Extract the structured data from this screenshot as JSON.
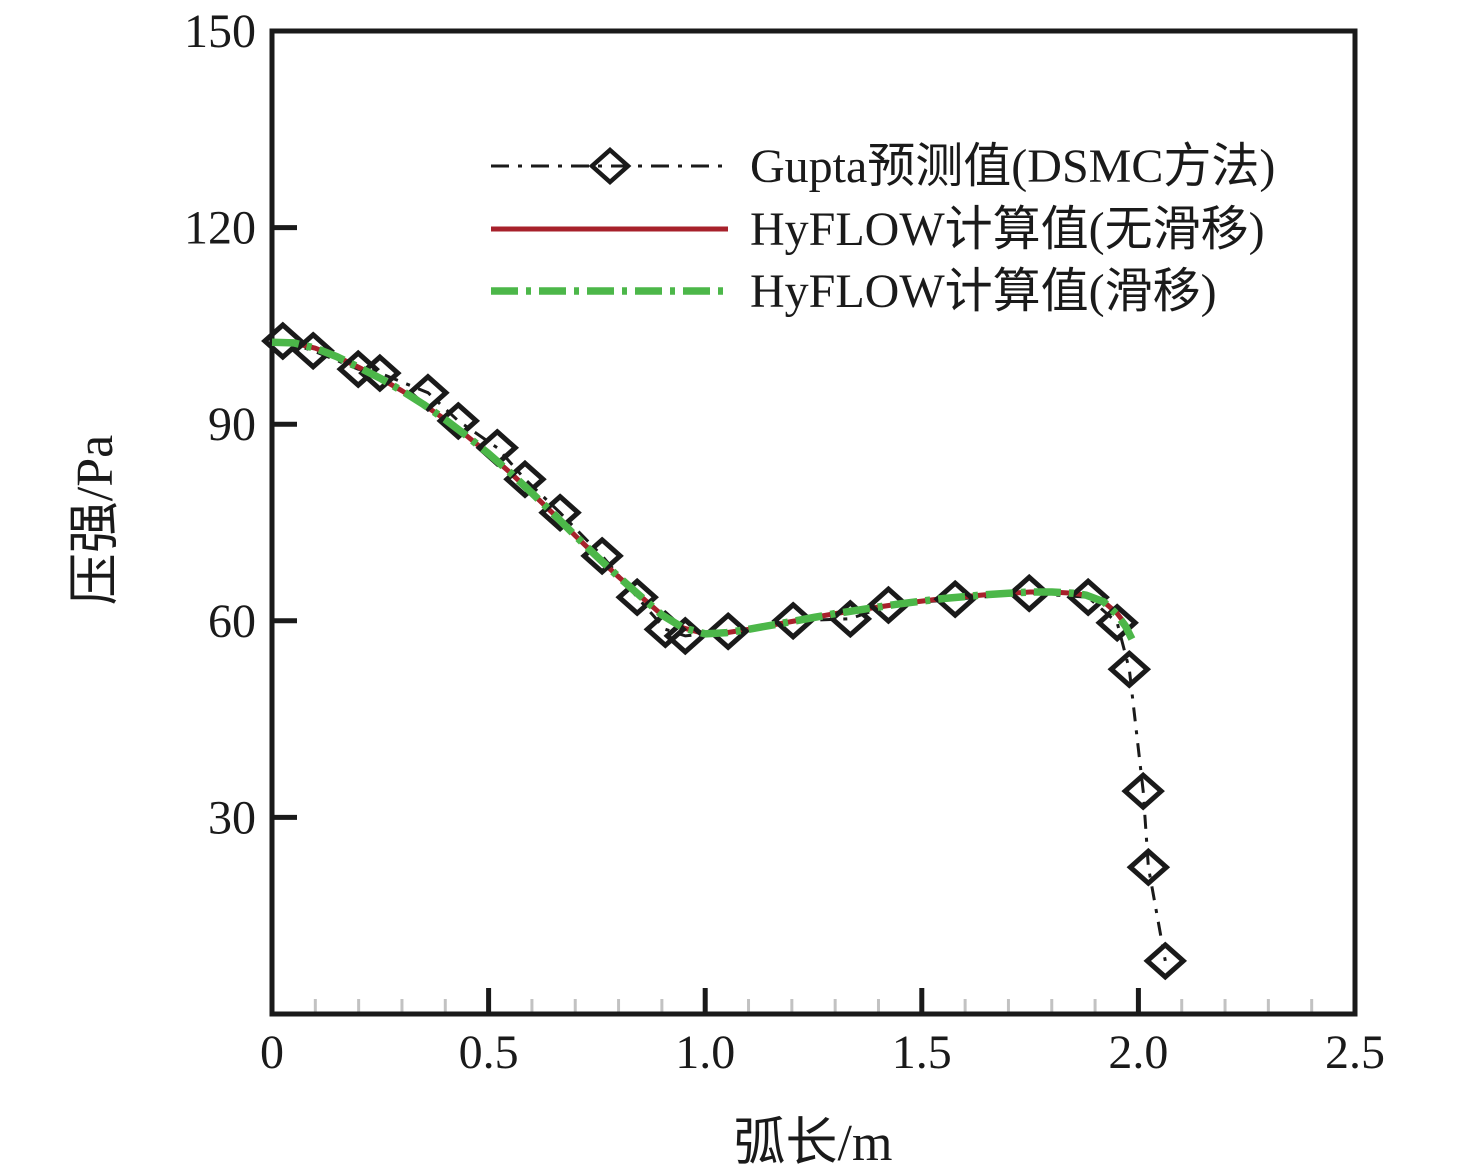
{
  "figure": {
    "background": "#ffffff",
    "axis_color": "#1a1a1a",
    "minor_tick_color": "#c2c2c2"
  },
  "chart_data": {
    "type": "line",
    "title": "",
    "xlabel": "弧长/m",
    "ylabel": "压强/Pa",
    "xlim": [
      0,
      2.5
    ],
    "ylim": [
      0,
      150
    ],
    "grid": false,
    "legend_position": "upper center, inside plot",
    "x_ticks": {
      "labels": [
        "0",
        "0.5",
        "1.0",
        "1.5",
        "2.0",
        "2.5"
      ],
      "values": [
        0,
        0.5,
        1.0,
        1.5,
        2.0,
        2.5
      ],
      "minor_step": 0.1
    },
    "y_ticks": {
      "labels": [
        "30",
        "60",
        "90",
        "120",
        "150"
      ],
      "values": [
        30,
        60,
        90,
        120,
        150
      ]
    },
    "series": [
      {
        "id": "gupta_dsmc",
        "name": "Gupta预测值(DSMC方法)",
        "color": "#1a1a1a",
        "line_style": "dash-dot",
        "marker": "open-diamond",
        "x": [
          0.025,
          0.095,
          0.199,
          0.249,
          0.36,
          0.43,
          0.52,
          0.584,
          0.665,
          0.762,
          0.843,
          0.908,
          0.954,
          1.053,
          1.203,
          1.335,
          1.423,
          1.577,
          1.748,
          1.884,
          1.951,
          1.979,
          2.011,
          2.023,
          2.062
        ],
        "y": [
          102.7,
          101.2,
          98.4,
          97.8,
          94.8,
          90.5,
          86.4,
          81.6,
          76.5,
          69.9,
          63.6,
          58.7,
          57.7,
          58.4,
          60.0,
          60.3,
          62.4,
          63.3,
          64.2,
          63.6,
          59.7,
          52.6,
          34.0,
          22.4,
          8.1
        ]
      },
      {
        "id": "hyflow_noslip",
        "name": "HyFLOW计算值(无滑移)",
        "color": "#a7212b",
        "line_style": "solid",
        "marker": "none",
        "x": [
          0,
          0.05,
          0.1,
          0.15,
          0.2,
          0.25,
          0.3,
          0.35,
          0.4,
          0.45,
          0.5,
          0.55,
          0.6,
          0.65,
          0.7,
          0.75,
          0.8,
          0.85,
          0.9,
          0.95,
          1.0,
          1.05,
          1.1,
          1.15,
          1.2,
          1.25,
          1.3,
          1.35,
          1.4,
          1.45,
          1.5,
          1.55,
          1.6,
          1.65,
          1.7,
          1.75,
          1.8,
          1.85,
          1.88,
          1.92,
          1.95,
          1.97,
          1.985
        ],
        "y": [
          102.5,
          102.4,
          101.6,
          100.3,
          98.7,
          97.0,
          95.1,
          93.0,
          90.7,
          88.2,
          85.5,
          82.6,
          79.5,
          76.3,
          73.0,
          69.8,
          66.7,
          63.8,
          60.9,
          58.9,
          58.0,
          58.2,
          58.7,
          59.3,
          59.9,
          60.5,
          61.1,
          61.6,
          62.1,
          62.6,
          63.0,
          63.4,
          63.7,
          64.0,
          64.2,
          64.4,
          64.4,
          64.2,
          63.9,
          62.9,
          61.2,
          59.5,
          57.5
        ]
      },
      {
        "id": "hyflow_slip",
        "name": "HyFLOW计算值(滑移)",
        "color": "#4cb749",
        "line_style": "dash-dot",
        "marker": "none",
        "x": [
          0,
          0.05,
          0.1,
          0.15,
          0.2,
          0.25,
          0.3,
          0.35,
          0.4,
          0.45,
          0.5,
          0.55,
          0.6,
          0.65,
          0.7,
          0.75,
          0.8,
          0.85,
          0.9,
          0.95,
          1.0,
          1.05,
          1.1,
          1.15,
          1.2,
          1.25,
          1.3,
          1.35,
          1.4,
          1.45,
          1.5,
          1.55,
          1.6,
          1.65,
          1.7,
          1.75,
          1.8,
          1.85,
          1.88,
          1.92,
          1.95,
          1.97,
          1.985
        ],
        "y": [
          102.5,
          102.4,
          101.6,
          100.3,
          98.7,
          97.0,
          95.1,
          93.0,
          90.7,
          88.2,
          85.5,
          82.6,
          79.5,
          76.3,
          73.0,
          69.8,
          66.7,
          63.8,
          60.9,
          58.9,
          58.0,
          58.2,
          58.7,
          59.3,
          59.9,
          60.5,
          61.1,
          61.6,
          62.1,
          62.6,
          63.0,
          63.4,
          63.7,
          64.0,
          64.2,
          64.4,
          64.4,
          64.2,
          63.9,
          62.9,
          61.0,
          59.2,
          57.2
        ]
      }
    ]
  }
}
